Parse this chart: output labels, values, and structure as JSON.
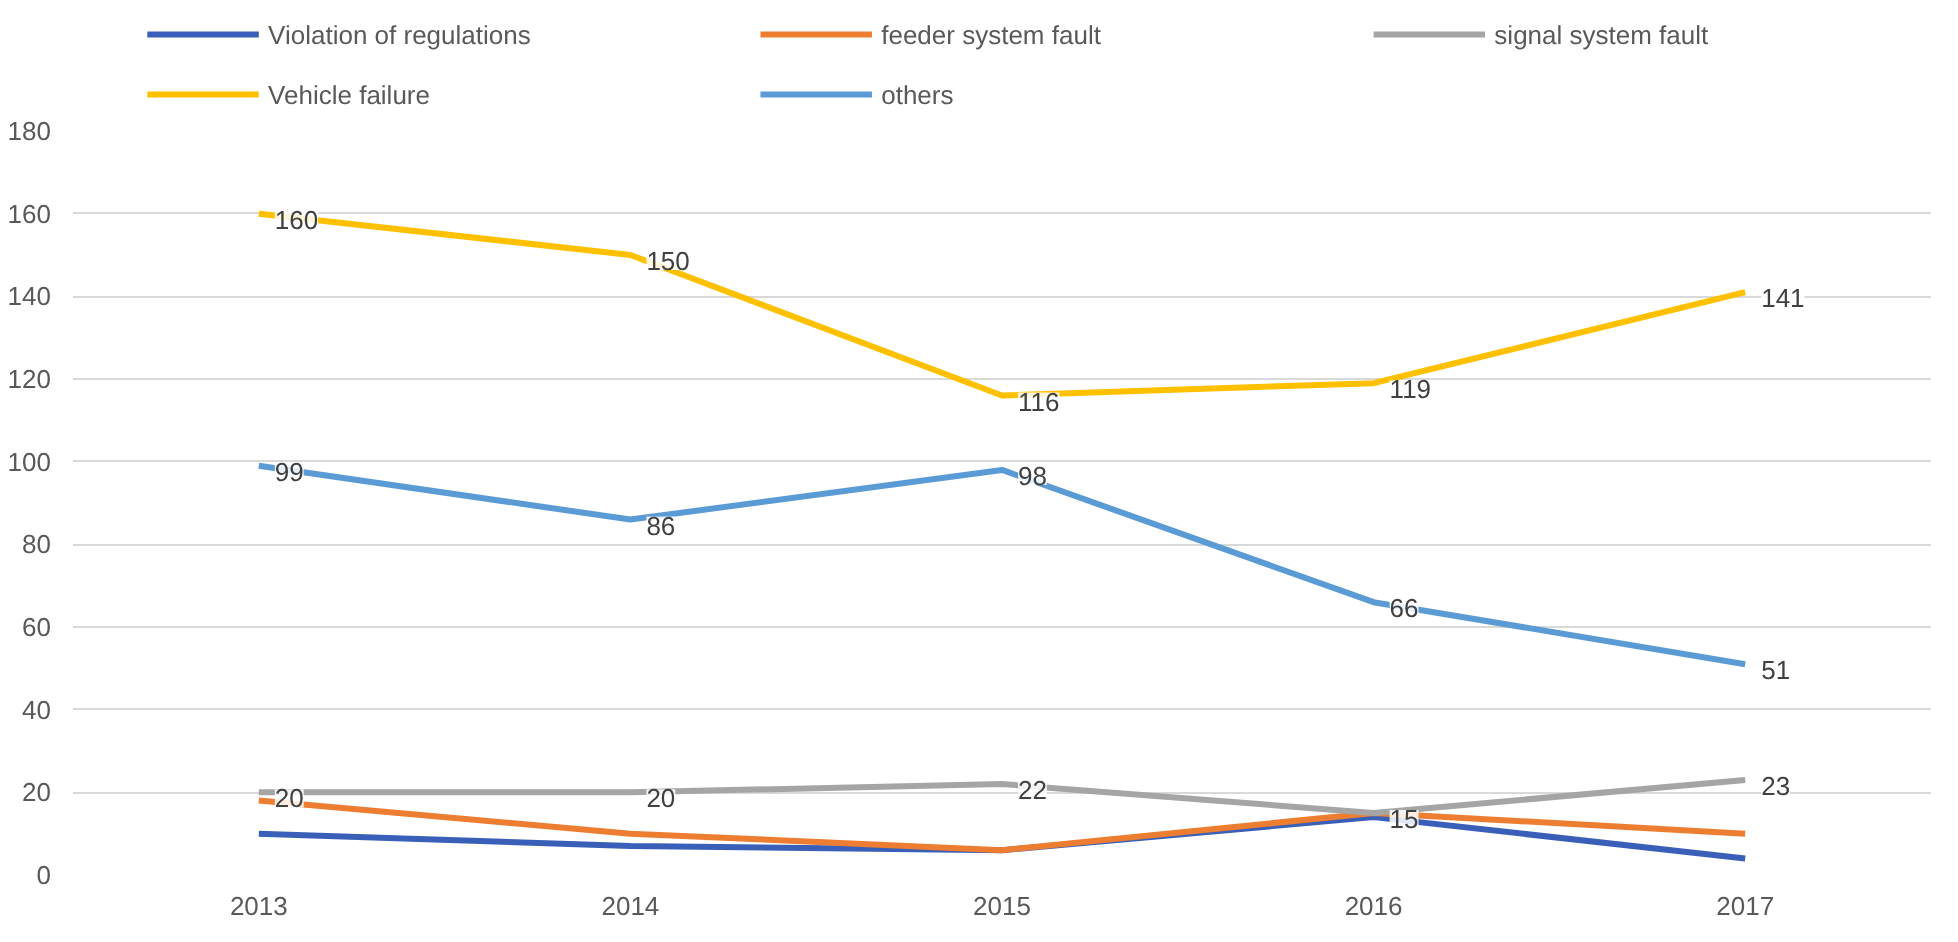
{
  "chart_data": {
    "type": "line",
    "categories": [
      "2013",
      "2014",
      "2015",
      "2016",
      "2017"
    ],
    "ylim": [
      0,
      180
    ],
    "yticks": [
      0,
      20,
      40,
      60,
      80,
      100,
      120,
      140,
      160,
      180
    ],
    "grid": "y",
    "legend": "top",
    "marker": "none",
    "line_style": "solid",
    "series": [
      {
        "name": "Violation of regulations",
        "color": "#3a5fb8",
        "values": [
          10,
          7,
          6,
          14,
          4
        ]
      },
      {
        "name": "feeder system fault",
        "color": "#ed7d31",
        "values": [
          18,
          10,
          6,
          15,
          10
        ]
      },
      {
        "name": "signal system fault",
        "color": "#a5a5a5",
        "values": [
          20,
          20,
          22,
          15,
          23
        ],
        "value_labels": [
          "20",
          "20",
          "22",
          "15",
          "23"
        ]
      },
      {
        "name": "Vehicle failure",
        "color": "#ffc000",
        "values": [
          160,
          150,
          116,
          119,
          141
        ],
        "value_labels": [
          "160",
          "150",
          "116",
          "119",
          "141"
        ]
      },
      {
        "name": "others",
        "color": "#5b9bd5",
        "values": [
          99,
          86,
          98,
          66,
          51
        ],
        "value_labels": [
          "99",
          "86",
          "98",
          "66",
          "51"
        ]
      }
    ]
  }
}
